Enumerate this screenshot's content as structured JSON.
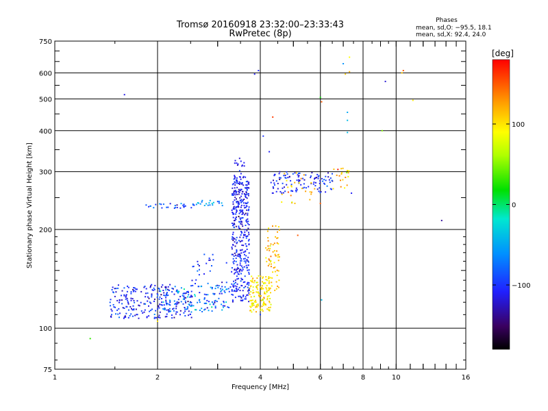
{
  "chart_data": {
    "type": "scatter",
    "title": "Tromsø 20160918 23:32:00–23:33:43",
    "subtitle": "RwPretec (8p)",
    "xlabel": "Frequency [MHz]",
    "ylabel": "Stationary phase Virtual Height [km]",
    "x_scale": "log",
    "y_scale": "log",
    "xlim": [
      1,
      16
    ],
    "ylim": [
      75,
      750
    ],
    "grid": true,
    "x_ticks": [
      "1",
      "2",
      "4",
      "6",
      "8",
      "10",
      "16"
    ],
    "y_ticks": [
      "75",
      "100",
      "200",
      "300",
      "400",
      "500",
      "600",
      "750"
    ],
    "phase_note": {
      "title": "Phases",
      "line1": "mean, sd,O: −95.5, 18.1",
      "line2": "mean, sd,X: 92.4, 24.0"
    },
    "colorbar": {
      "label": "[deg]",
      "range": [
        -180,
        180
      ],
      "ticks": [
        "100",
        "0",
        "−100"
      ]
    },
    "series": [
      {
        "clusters": [
          {
            "x_range": [
              1.45,
              2.55
            ],
            "y_range": [
              107,
              136
            ],
            "phase_mean": -105,
            "phase_sd": 18,
            "n": 260
          },
          {
            "x_range": [
              2.0,
              3.2
            ],
            "y_range": [
              112,
              135
            ],
            "phase_mean": -65,
            "phase_sd": 25,
            "n": 90
          },
          {
            "x_range": [
              2.5,
              3.5
            ],
            "y_range": [
              115,
              170
            ],
            "phase_mean": -100,
            "phase_sd": 20,
            "n": 70
          },
          {
            "x_range": [
              3.3,
              3.72
            ],
            "y_range": [
              120,
              290
            ],
            "phase_mean": -108,
            "phase_sd": 14,
            "n": 380
          },
          {
            "x_range": [
              3.35,
              3.6
            ],
            "y_range": [
              240,
              330
            ],
            "phase_mean": -112,
            "phase_sd": 10,
            "n": 25
          },
          {
            "x_range": [
              1.85,
              2.6
            ],
            "y_range": [
              232,
              240
            ],
            "phase_mean": -95,
            "phase_sd": 20,
            "n": 30
          },
          {
            "x_range": [
              2.6,
              3.1
            ],
            "y_range": [
              236,
              245
            ],
            "phase_mean": -60,
            "phase_sd": 20,
            "n": 20
          },
          {
            "x_range": [
              3.72,
              4.3
            ],
            "y_range": [
              112,
              145
            ],
            "phase_mean": 100,
            "phase_sd": 15,
            "n": 130
          },
          {
            "x_range": [
              4.15,
              4.55
            ],
            "y_range": [
              130,
              205
            ],
            "phase_mean": 112,
            "phase_sd": 15,
            "n": 70
          },
          {
            "x_range": [
              4.3,
              6.6
            ],
            "y_range": [
              258,
              300
            ],
            "phase_mean": -105,
            "phase_sd": 15,
            "n": 110
          },
          {
            "x_range": [
              4.6,
              5.8
            ],
            "y_range": [
              240,
              300
            ],
            "phase_mean": 110,
            "phase_sd": 20,
            "n": 25
          },
          {
            "x_range": [
              6.5,
              7.3
            ],
            "y_range": [
              265,
              310
            ],
            "phase_mean": 110,
            "phase_sd": 25,
            "n": 20
          }
        ],
        "points": [
          {
            "x": 1.6,
            "y": 515,
            "phase": -115
          },
          {
            "x": 3.85,
            "y": 595,
            "phase": -110
          },
          {
            "x": 3.95,
            "y": 610,
            "phase": -105
          },
          {
            "x": 4.08,
            "y": 385,
            "phase": -100
          },
          {
            "x": 4.25,
            "y": 345,
            "phase": -110
          },
          {
            "x": 4.35,
            "y": 440,
            "phase": 160
          },
          {
            "x": 6.0,
            "y": 505,
            "phase": 20
          },
          {
            "x": 6.05,
            "y": 490,
            "phase": 150
          },
          {
            "x": 7.0,
            "y": 640,
            "phase": -60
          },
          {
            "x": 7.1,
            "y": 595,
            "phase": 110
          },
          {
            "x": 7.2,
            "y": 455,
            "phase": -50
          },
          {
            "x": 7.2,
            "y": 430,
            "phase": -40
          },
          {
            "x": 7.2,
            "y": 395,
            "phase": -40
          },
          {
            "x": 7.3,
            "y": 670,
            "phase": 90
          },
          {
            "x": 7.3,
            "y": 605,
            "phase": 120
          },
          {
            "x": 7.4,
            "y": 258,
            "phase": -110
          },
          {
            "x": 9.3,
            "y": 565,
            "phase": -120
          },
          {
            "x": 10.4,
            "y": 600,
            "phase": 110
          },
          {
            "x": 10.5,
            "y": 610,
            "phase": 150
          },
          {
            "x": 11.2,
            "y": 495,
            "phase": 100
          },
          {
            "x": 9.1,
            "y": 400,
            "phase": 50
          },
          {
            "x": 13.6,
            "y": 213,
            "phase": -135
          },
          {
            "x": 1.27,
            "y": 93,
            "phase": 30
          },
          {
            "x": 6.05,
            "y": 122,
            "phase": -40
          },
          {
            "x": 2.0,
            "y": 105,
            "phase": 100
          },
          {
            "x": 4.0,
            "y": 110,
            "phase": -95
          },
          {
            "x": 5.15,
            "y": 192,
            "phase": 150
          },
          {
            "x": 6.0,
            "y": 240,
            "phase": 150
          }
        ]
      }
    ]
  }
}
